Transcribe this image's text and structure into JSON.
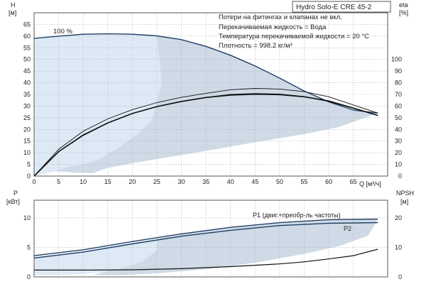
{
  "title": "Hydro Solo-E CRE 45-2",
  "notes": [
    "Потери на фитингах и клапанах не вкл.",
    "Перекачиваемая жидкость = Вода",
    "Температура перекачиваемой жидкости = 20 °C",
    "Плотность = 998.2 кг/м³"
  ],
  "colors": {
    "fill_light": "#ddeaf6",
    "fill_mid": "#cfdae6",
    "curve_dark": "#1f3f66",
    "curve_black": "#111111",
    "grid": "#b0b0b0"
  },
  "chart_data": [
    {
      "type": "line",
      "name": "qh",
      "x_axis": {
        "label": "Q [м³/ч]",
        "min": 0,
        "max": 72,
        "ticks": [
          0,
          5,
          10,
          15,
          20,
          25,
          30,
          35,
          40,
          45,
          50,
          55,
          60,
          65
        ]
      },
      "y_axis_left": {
        "label_line1": "H",
        "label_line2": "[м]",
        "min": 0,
        "max": 70,
        "ticks": [
          0,
          5,
          10,
          15,
          20,
          25,
          30,
          35,
          40,
          45,
          50,
          55,
          60,
          65
        ]
      },
      "y_axis_right": {
        "label_line1": "eta",
        "label_line2": "[%]",
        "min": 0,
        "max": 140,
        "ticks": [
          0,
          10,
          20,
          30,
          40,
          50,
          60,
          70,
          80,
          90,
          100
        ]
      },
      "grid": true,
      "annotation": "100 %",
      "series": [
        {
          "role": "head_max",
          "axis": "left",
          "points": [
            [
              0,
              59
            ],
            [
              5,
              60
            ],
            [
              10,
              60.8
            ],
            [
              15,
              61
            ],
            [
              20,
              60.8
            ],
            [
              25,
              60.1
            ],
            [
              30,
              58.5
            ],
            [
              35,
              55.6
            ],
            [
              40,
              51.8
            ],
            [
              45,
              47.2
            ],
            [
              50,
              42
            ],
            [
              55,
              36.5
            ],
            [
              60,
              31.8
            ],
            [
              65,
              28.3
            ],
            [
              70,
              27
            ]
          ]
        },
        {
          "role": "eta_upper",
          "axis": "right",
          "points": [
            [
              0,
              0
            ],
            [
              5,
              23
            ],
            [
              10,
              38.5
            ],
            [
              15,
              49
            ],
            [
              20,
              57
            ],
            [
              25,
              63
            ],
            [
              30,
              67.5
            ],
            [
              35,
              71
            ],
            [
              40,
              74
            ],
            [
              45,
              75.2
            ],
            [
              50,
              74.6
            ],
            [
              55,
              72.4
            ],
            [
              60,
              68
            ],
            [
              65,
              61
            ],
            [
              70,
              54
            ]
          ]
        },
        {
          "role": "eta_lower",
          "axis": "right",
          "points": [
            [
              0,
              0
            ],
            [
              5,
              21
            ],
            [
              10,
              35.5
            ],
            [
              15,
              45.5
            ],
            [
              20,
              53.5
            ],
            [
              25,
              59.5
            ],
            [
              30,
              64
            ],
            [
              35,
              67.5
            ],
            [
              40,
              70
            ],
            [
              45,
              70.8
            ],
            [
              50,
              70.3
            ],
            [
              55,
              68.2
            ],
            [
              60,
              64
            ],
            [
              65,
              58
            ],
            [
              70,
              52
            ]
          ]
        },
        {
          "role": "head_duty",
          "axis": "left",
          "points": [
            [
              0,
              0
            ],
            [
              5,
              10.5
            ],
            [
              10,
              17.5
            ],
            [
              15,
              22.8
            ],
            [
              20,
              26.8
            ],
            [
              25,
              29.8
            ],
            [
              30,
              32
            ],
            [
              35,
              33.7
            ],
            [
              40,
              34.7
            ],
            [
              45,
              35.1
            ],
            [
              50,
              34.9
            ],
            [
              55,
              34
            ],
            [
              60,
              32.2
            ],
            [
              65,
              29.2
            ],
            [
              70,
              26
            ]
          ]
        }
      ],
      "regions": [
        {
          "role": "operating_area_light",
          "points": [
            [
              0,
              59
            ],
            [
              10,
              60.8
            ],
            [
              20,
              60.8
            ],
            [
              25,
              60.1
            ],
            [
              26,
              40
            ],
            [
              24,
              24
            ],
            [
              21,
              18
            ],
            [
              17,
              12
            ],
            [
              13,
              7
            ],
            [
              10,
              5
            ],
            [
              7,
              4
            ],
            [
              4,
              2
            ],
            [
              0,
              0
            ]
          ]
        },
        {
          "role": "operating_area_mid",
          "points": [
            [
              25,
              60.1
            ],
            [
              30,
              58.5
            ],
            [
              35,
              55.6
            ],
            [
              40,
              51.8
            ],
            [
              45,
              47.2
            ],
            [
              50,
              42
            ],
            [
              55,
              36.5
            ],
            [
              60,
              31.8
            ],
            [
              65,
              28.3
            ],
            [
              70,
              27
            ],
            [
              62,
              21
            ],
            [
              55,
              18
            ],
            [
              45,
              14.5
            ],
            [
              35,
              10.8
            ],
            [
              25,
              7.3
            ],
            [
              20,
              5.5
            ],
            [
              15,
              3.5
            ],
            [
              12,
              1.3
            ],
            [
              8,
              1.5
            ],
            [
              5,
              2
            ],
            [
              2,
              2.3
            ],
            [
              4,
              2
            ],
            [
              7,
              4
            ],
            [
              10,
              5
            ],
            [
              13,
              7
            ],
            [
              17,
              12
            ],
            [
              21,
              18
            ],
            [
              24,
              24
            ],
            [
              26,
              40
            ]
          ]
        }
      ]
    },
    {
      "type": "line",
      "name": "power",
      "x_axis": {
        "label": "",
        "min": 0,
        "max": 72,
        "ticks": [
          0,
          5,
          10,
          15,
          20,
          25,
          30,
          35,
          40,
          45,
          50,
          55,
          60,
          65
        ]
      },
      "y_axis_left": {
        "label_line1": "P",
        "label_line2": "[кВт]",
        "min": 0,
        "max": 13,
        "ticks": [
          0,
          5,
          10
        ]
      },
      "y_axis_right": {
        "label_line1": "NPSH",
        "label_line2": "[м]",
        "min": 0,
        "max": 26,
        "ticks": [
          0,
          10,
          20
        ]
      },
      "grid": true,
      "series": [
        {
          "name": "P1 (двиг.+преобр-ль частоты)",
          "axis": "left",
          "points": [
            [
              0,
              3.6
            ],
            [
              10,
              4.6
            ],
            [
              20,
              6
            ],
            [
              30,
              7.3
            ],
            [
              40,
              8.4
            ],
            [
              50,
              9.2
            ],
            [
              60,
              9.7
            ],
            [
              70,
              9.8
            ]
          ]
        },
        {
          "name": "P2",
          "axis": "left",
          "points": [
            [
              0,
              3.2
            ],
            [
              10,
              4.2
            ],
            [
              20,
              5.6
            ],
            [
              30,
              6.9
            ],
            [
              40,
              7.9
            ],
            [
              50,
              8.7
            ],
            [
              60,
              9.1
            ],
            [
              70,
              9.2
            ]
          ]
        },
        {
          "role": "npsh",
          "axis": "right",
          "points": [
            [
              0,
              2.3
            ],
            [
              10,
              2.3
            ],
            [
              20,
              2.4
            ],
            [
              30,
              2.8
            ],
            [
              40,
              3.5
            ],
            [
              50,
              4.4
            ],
            [
              55,
              5.1
            ],
            [
              60,
              6.1
            ],
            [
              65,
              7.2
            ],
            [
              70,
              9.4
            ]
          ]
        }
      ],
      "regions": [
        {
          "role": "power_area_light",
          "points": [
            [
              0,
              3.4
            ],
            [
              10,
              4.4
            ],
            [
              20,
              5.8
            ],
            [
              25,
              6.5
            ],
            [
              25,
              4.5
            ],
            [
              22,
              2.6
            ],
            [
              18,
              1.5
            ],
            [
              14,
              0.8
            ],
            [
              8,
              0.4
            ],
            [
              0,
              0.3
            ]
          ]
        },
        {
          "role": "power_area_mid",
          "points": [
            [
              25,
              6.5
            ],
            [
              30,
              7.2
            ],
            [
              40,
              8.3
            ],
            [
              50,
              9.1
            ],
            [
              60,
              9.6
            ],
            [
              70,
              9.7
            ],
            [
              68,
              7
            ],
            [
              62,
              5.2
            ],
            [
              55,
              3.9
            ],
            [
              45,
              2.4
            ],
            [
              35,
              1.3
            ],
            [
              25,
              0.6
            ],
            [
              18,
              0.3
            ],
            [
              12,
              0.3
            ],
            [
              14,
              0.8
            ],
            [
              18,
              1.5
            ],
            [
              22,
              2.6
            ],
            [
              25,
              4.5
            ]
          ]
        }
      ]
    }
  ]
}
